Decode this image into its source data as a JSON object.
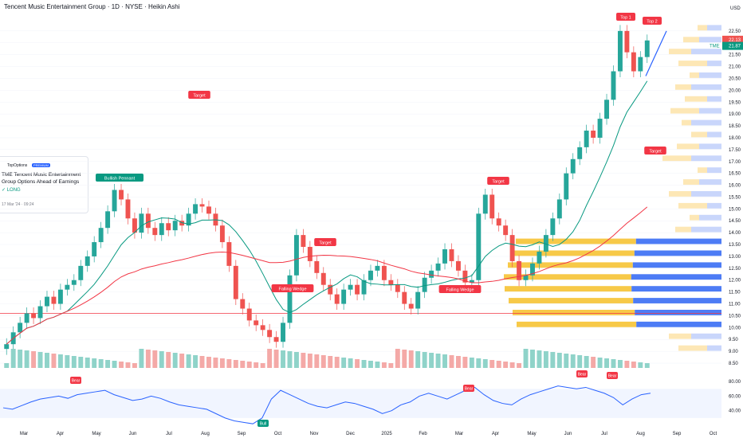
{
  "chart_title": "Tencent Music Entertainment Group · 1D · NYSE · Heikin Ashi",
  "idea_card": {
    "brand": "TopOptions",
    "badge": "PREMIUM",
    "headline": "TME Tencent Music Entertainment Group Options Ahead of Earnings",
    "side": "LONG",
    "date": "17 Mar '24 · 09:24"
  },
  "colors": {
    "up": "#26a69a",
    "down": "#ef5350",
    "ma_fast": "#089981",
    "ma_slow": "#f23645",
    "trend": "#2962ff",
    "pattern": "#ff9800",
    "vp_up": "#f7c948",
    "vp_down": "#4d7cf5",
    "rsi": "#2962ff"
  },
  "chart_data": {
    "type": "candlestick",
    "price_axis": {
      "currency": "USD",
      "ticks": [
        "22.50",
        "22.00",
        "21.50",
        "21.00",
        "20.50",
        "20.00",
        "19.50",
        "19.00",
        "18.50",
        "18.00",
        "17.50",
        "17.00",
        "16.50",
        "16.00",
        "15.50",
        "15.00",
        "14.50",
        "14.00",
        "13.50",
        "13.00",
        "12.50",
        "12.00",
        "11.50",
        "11.00",
        "10.50",
        "10.00",
        "9.50",
        "9.00",
        "8.50"
      ],
      "ylim": [
        8.3,
        23.2
      ]
    },
    "time_axis": [
      "Mar",
      "Apr",
      "May",
      "Jun",
      "Jul",
      "Aug",
      "Sep",
      "Oct",
      "Nov",
      "Dec",
      "2025",
      "Feb",
      "Mar",
      "Apr",
      "May",
      "Jun",
      "Jul",
      "Aug",
      "Sep",
      "Oct"
    ],
    "price_labels": {
      "ticker": "TME",
      "last": "22.13",
      "line": "21.87"
    },
    "horizontal_line": 10.6,
    "ohlc_close_path": [
      9.3,
      9.8,
      10.2,
      10.6,
      10.4,
      10.9,
      11.3,
      11.0,
      11.6,
      11.8,
      12.0,
      12.6,
      13.0,
      13.6,
      14.2,
      14.9,
      15.8,
      15.4,
      14.6,
      14.0,
      14.8,
      14.2,
      13.9,
      14.4,
      14.1,
      14.5,
      14.3,
      14.8,
      15.2,
      15.1,
      14.8,
      14.3,
      13.6,
      12.6,
      11.2,
      10.8,
      10.3,
      10.1,
      9.9,
      9.6,
      9.4,
      10.2,
      12.2,
      13.9,
      13.4,
      12.8,
      12.3,
      11.8,
      11.4,
      11.0,
      11.6,
      11.8,
      11.4,
      12.0,
      12.4,
      12.6,
      12.0,
      11.8,
      11.5,
      11.0,
      10.8,
      11.5,
      12.1,
      12.4,
      12.7,
      13.3,
      12.8,
      12.4,
      11.9,
      12.0,
      14.8,
      15.6,
      14.6,
      14.3,
      13.9,
      12.8,
      12.0,
      12.2,
      12.7,
      13.2,
      13.9,
      14.6,
      15.4,
      16.5,
      17.1,
      17.6,
      18.3,
      18.0,
      18.8,
      19.6,
      20.8,
      22.5,
      21.6,
      20.8,
      21.4,
      22.1
    ],
    "labels": [
      {
        "kind": "pattern",
        "text": "Bullish Pennant",
        "color": "#089981"
      },
      {
        "kind": "pattern",
        "text": "Falling Wedge",
        "color": "#f23645"
      },
      {
        "kind": "pattern",
        "text": "Falling Wedge",
        "color": "#f23645"
      },
      {
        "kind": "target",
        "text": "Target",
        "color": "#f23645"
      },
      {
        "kind": "target",
        "text": "Target",
        "color": "#f23645"
      },
      {
        "kind": "target",
        "text": "Target",
        "color": "#f23645"
      },
      {
        "kind": "target",
        "text": "Target",
        "color": "#f23645"
      },
      {
        "kind": "top",
        "text": "Top 1",
        "color": "#f23645"
      },
      {
        "kind": "top",
        "text": "Top 2",
        "color": "#f23645"
      }
    ],
    "rsi": {
      "ticks": [
        "80.00",
        "60.00",
        "40.00"
      ],
      "ylim": [
        20,
        90
      ],
      "values": [
        44,
        42,
        47,
        52,
        56,
        58,
        60,
        57,
        62,
        64,
        66,
        68,
        62,
        58,
        54,
        56,
        60,
        57,
        52,
        48,
        46,
        44,
        42,
        36,
        30,
        26,
        24,
        22,
        30,
        56,
        68,
        62,
        56,
        50,
        46,
        44,
        48,
        52,
        50,
        46,
        42,
        36,
        40,
        48,
        52,
        60,
        64,
        60,
        56,
        62,
        68,
        72,
        62,
        54,
        50,
        48,
        56,
        62,
        66,
        70,
        74,
        72,
        70,
        72,
        68,
        64,
        58,
        48,
        56,
        62,
        64
      ],
      "labels": [
        {
          "text": "Bear",
          "color": "#f23645"
        },
        {
          "text": "Bull",
          "color": "#089981"
        },
        {
          "text": "Bear",
          "color": "#f23645"
        },
        {
          "text": "Bear",
          "color": "#f23645"
        },
        {
          "text": "Bear",
          "color": "#f23645"
        }
      ]
    },
    "volume_profile_levels": [
      "22.50",
      "22.00",
      "21.50",
      "21.00",
      "20.50",
      "20.00",
      "19.50",
      "19.00",
      "18.50",
      "18.00",
      "17.50",
      "17.00",
      "16.50",
      "16.00",
      "15.50",
      "15.00",
      "14.50",
      "14.00",
      "13.50",
      "13.00",
      "12.50",
      "12.00",
      "11.50",
      "11.00",
      "10.50",
      "10.00",
      "9.50",
      "9.00"
    ]
  }
}
